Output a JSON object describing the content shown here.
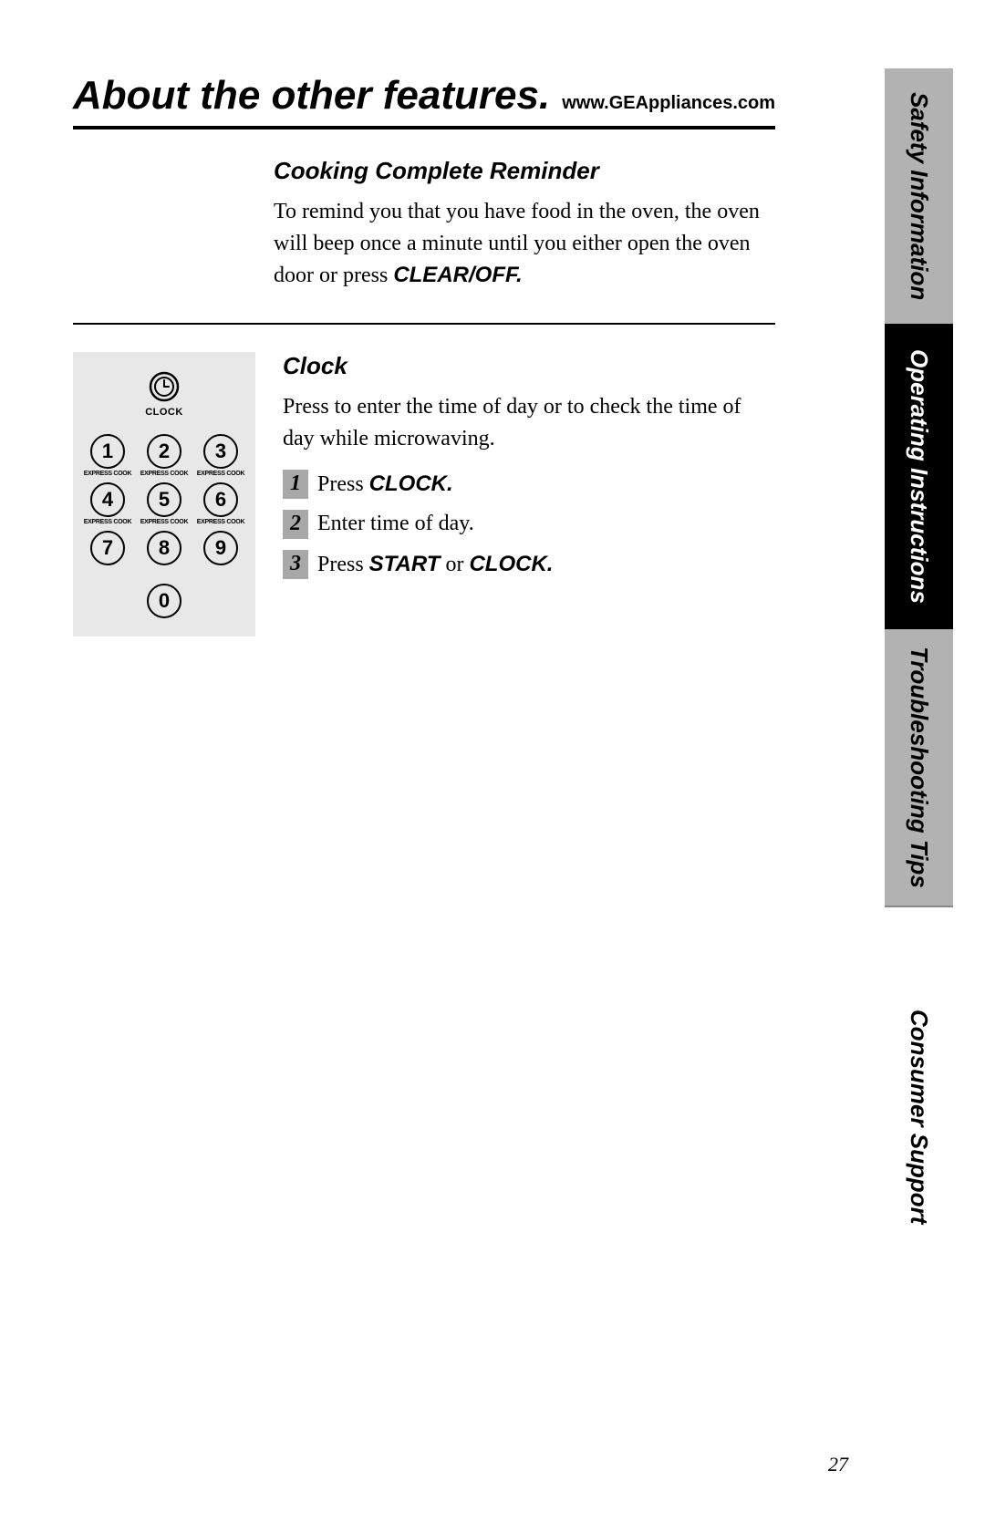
{
  "sideTabs": {
    "safety": "Safety Information",
    "operating": "Operating Instructions",
    "trouble": "Troubleshooting Tips",
    "consumer": "Consumer Support"
  },
  "header": {
    "title": "About the other features.",
    "url": "www.GEAppliances.com"
  },
  "section1": {
    "heading": "Cooking Complete Reminder",
    "body_pre": "To remind you that you have food in the oven, the oven will beep once a minute until you either open the oven door or press ",
    "body_bold": "CLEAR/OFF."
  },
  "section2": {
    "heading": "Clock",
    "intro": "Press to enter the time of day or to check the time of day while microwaving.",
    "steps": [
      {
        "num": "1",
        "pre": "Press ",
        "bold": "CLOCK.",
        "post": ""
      },
      {
        "num": "2",
        "pre": "Enter time of day.",
        "bold": "",
        "post": ""
      },
      {
        "num": "3",
        "pre": "Press ",
        "bold": "START",
        "mid": " or ",
        "bold2": "CLOCK.",
        "post": ""
      }
    ]
  },
  "keypad": {
    "clock_label": "CLOCK",
    "express_label": "EXPRESS COOK",
    "keys": [
      {
        "digit": "1",
        "sub": true
      },
      {
        "digit": "2",
        "sub": true
      },
      {
        "digit": "3",
        "sub": true
      },
      {
        "digit": "4",
        "sub": true
      },
      {
        "digit": "5",
        "sub": true
      },
      {
        "digit": "6",
        "sub": true
      },
      {
        "digit": "7",
        "sub": false
      },
      {
        "digit": "8",
        "sub": false
      },
      {
        "digit": "9",
        "sub": false
      }
    ],
    "zero": "0"
  },
  "pageNumber": "27",
  "colors": {
    "tab_gray": "#b2b2b2",
    "panel_gray": "#e8e8e8",
    "step_gray": "#a8a8a8",
    "black": "#000000",
    "white": "#ffffff"
  },
  "typography": {
    "title_fontsize": 44,
    "heading_fontsize": 26,
    "body_fontsize": 24,
    "tab_fontsize": 26,
    "url_fontsize": 20
  }
}
